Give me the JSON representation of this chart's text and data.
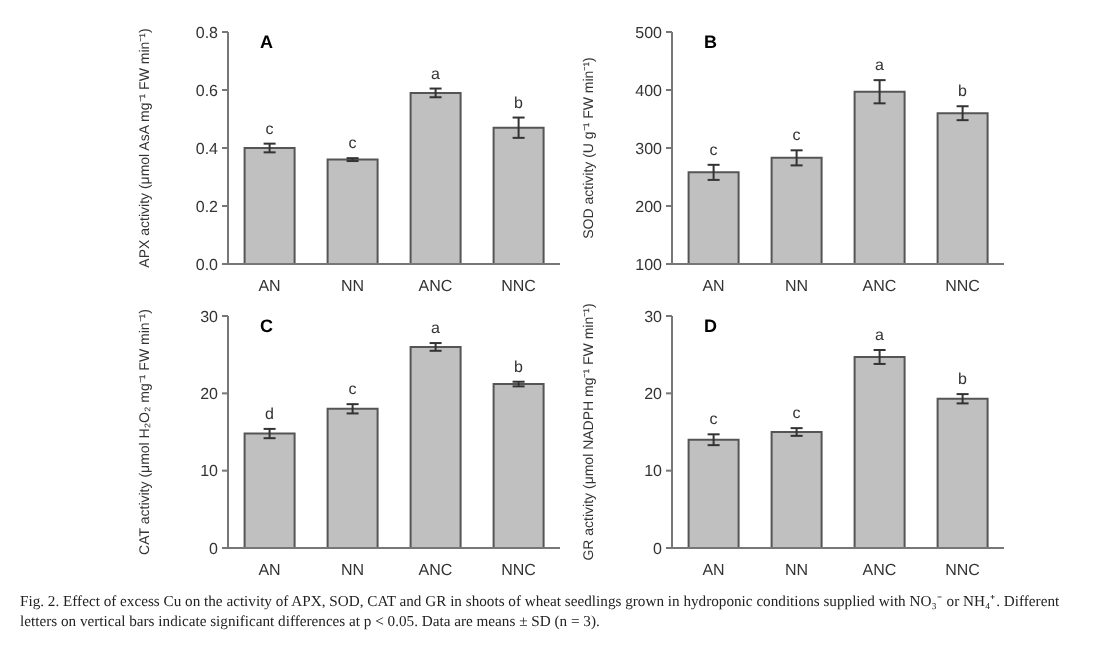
{
  "chart_data": [
    {
      "type": "bar",
      "title": "A",
      "ylabel": "APX activity (μmol AsA mg⁻¹ FW min⁻¹)",
      "categories": [
        "AN",
        "NN",
        "ANC",
        "NNC"
      ],
      "values": [
        0.4,
        0.36,
        0.59,
        0.47
      ],
      "errors": [
        0.015,
        0.005,
        0.015,
        0.035
      ],
      "color": "#c0c0c0",
      "ylim": [
        0,
        0.8
      ],
      "yticks": [
        {
          "value": 0,
          "label": "0.0"
        },
        {
          "value": 0.2,
          "label": "0.2"
        },
        {
          "value": 0.4,
          "label": "0.4"
        },
        {
          "value": 0.6,
          "label": "0.6"
        },
        {
          "value": 0.8,
          "label": "0.8"
        }
      ],
      "grid": false,
      "legend": false,
      "annotations": [
        {
          "text": "c",
          "x": "AN",
          "y": 0.415
        },
        {
          "text": "c",
          "x": "NN",
          "y": 0.365
        },
        {
          "text": "a",
          "x": "ANC",
          "y": 0.605
        },
        {
          "text": "b",
          "x": "NNC",
          "y": 0.505
        }
      ]
    },
    {
      "type": "bar",
      "title": "B",
      "ylabel": "SOD activity (U g⁻¹ FW min⁻¹)",
      "categories": [
        "AN",
        "NN",
        "ANC",
        "NNC"
      ],
      "values": [
        258,
        283,
        397,
        360
      ],
      "errors": [
        13,
        13,
        20,
        12
      ],
      "color": "#c0c0c0",
      "ylim": [
        100,
        500
      ],
      "yticks": [
        100,
        200,
        300,
        400,
        500
      ],
      "grid": false,
      "legend": false,
      "annotations": [
        {
          "text": "c",
          "x": "AN",
          "y": 271
        },
        {
          "text": "c",
          "x": "NN",
          "y": 296
        },
        {
          "text": "a",
          "x": "ANC",
          "y": 417
        },
        {
          "text": "b",
          "x": "NNC",
          "y": 372
        }
      ]
    },
    {
      "type": "bar",
      "title": "C",
      "ylabel": "CAT activity (μmol H₂O₂ mg⁻¹ FW min⁻¹)",
      "categories": [
        "AN",
        "NN",
        "ANC",
        "NNC"
      ],
      "values": [
        14.8,
        18.0,
        26.0,
        21.2
      ],
      "errors": [
        0.6,
        0.6,
        0.5,
        0.3
      ],
      "color": "#c0c0c0",
      "ylim": [
        0,
        30
      ],
      "yticks": [
        0,
        10,
        20,
        30
      ],
      "grid": false,
      "legend": false,
      "annotations": [
        {
          "text": "d",
          "x": "AN",
          "y": 15.4
        },
        {
          "text": "c",
          "x": "NN",
          "y": 18.6
        },
        {
          "text": "a",
          "x": "ANC",
          "y": 26.5
        },
        {
          "text": "b",
          "x": "NNC",
          "y": 21.5
        }
      ]
    },
    {
      "type": "bar",
      "title": "D",
      "ylabel": "GR activity (μmol NADPH mg⁻¹ FW min⁻¹)",
      "categories": [
        "AN",
        "NN",
        "ANC",
        "NNC"
      ],
      "values": [
        14.0,
        15.0,
        24.7,
        19.3
      ],
      "errors": [
        0.7,
        0.5,
        0.9,
        0.6
      ],
      "color": "#c0c0c0",
      "ylim": [
        0,
        30
      ],
      "yticks": [
        0,
        10,
        20,
        30
      ],
      "grid": false,
      "legend": false,
      "annotations": [
        {
          "text": "c",
          "x": "AN",
          "y": 14.7
        },
        {
          "text": "c",
          "x": "NN",
          "y": 15.5
        },
        {
          "text": "a",
          "x": "ANC",
          "y": 25.6
        },
        {
          "text": "b",
          "x": "NNC",
          "y": 19.9
        },
        "Fig. 2. Effect of excess Cu on the activity of APX, SOD, CAT and GR in shoots of wheat seedlings grown in hydroponic conditions supplied with NO₃⁻ or NH₄⁺. Different letters on vertical bars indicate significant differences at p < 0.05. Data are means ± SD (n = 3)."
      ]
    }
  ]
}
